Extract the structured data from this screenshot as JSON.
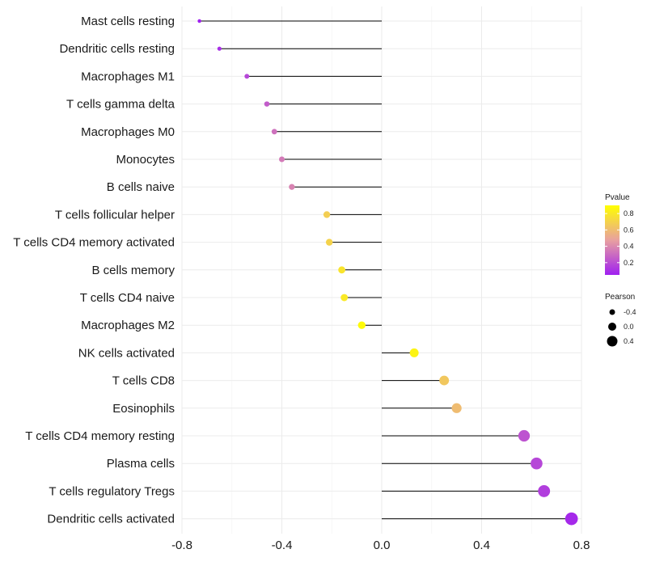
{
  "chart_data": {
    "type": "lollipop",
    "title": "",
    "xlabel": "",
    "ylabel": "",
    "xlim": [
      -0.8,
      0.8
    ],
    "xticks": [
      -0.8,
      -0.4,
      0.0,
      0.4,
      0.8
    ],
    "xtick_labels": [
      "-0.8",
      "-0.4",
      "0.0",
      "0.4",
      "0.8"
    ],
    "grid": true,
    "points": [
      {
        "category": "Mast cells resting",
        "pearson": -0.73,
        "pvalue": 0.05
      },
      {
        "category": "Dendritic cells resting",
        "pearson": -0.65,
        "pvalue": 0.1
      },
      {
        "category": "Macrophages M1",
        "pearson": -0.54,
        "pvalue": 0.18
      },
      {
        "category": "T cells gamma delta",
        "pearson": -0.46,
        "pvalue": 0.25
      },
      {
        "category": "Macrophages M0",
        "pearson": -0.43,
        "pvalue": 0.32
      },
      {
        "category": "Monocytes",
        "pearson": -0.4,
        "pvalue": 0.35
      },
      {
        "category": "B cells naive",
        "pearson": -0.36,
        "pvalue": 0.38
      },
      {
        "category": "T cells follicular helper",
        "pearson": -0.22,
        "pvalue": 0.68
      },
      {
        "category": "T cells CD4 memory activated",
        "pearson": -0.21,
        "pvalue": 0.7
      },
      {
        "category": "B cells memory",
        "pearson": -0.16,
        "pvalue": 0.78
      },
      {
        "category": "T cells CD4 naive",
        "pearson": -0.15,
        "pvalue": 0.8
      },
      {
        "category": "Macrophages M2",
        "pearson": -0.08,
        "pvalue": 0.88
      },
      {
        "category": "NK cells activated",
        "pearson": 0.13,
        "pvalue": 0.85
      },
      {
        "category": "T cells CD8",
        "pearson": 0.25,
        "pvalue": 0.65
      },
      {
        "category": "Eosinophils",
        "pearson": 0.3,
        "pvalue": 0.6
      },
      {
        "category": "T cells CD4 memory resting",
        "pearson": 0.57,
        "pvalue": 0.22
      },
      {
        "category": "Plasma cells",
        "pearson": 0.62,
        "pvalue": 0.18
      },
      {
        "category": "T cells regulatory  Tregs",
        "pearson": 0.65,
        "pvalue": 0.15
      },
      {
        "category": "Dendritic cells activated",
        "pearson": 0.76,
        "pvalue": 0.08
      }
    ],
    "color_legend": {
      "title": "Pvalue",
      "range": [
        0.05,
        0.9
      ],
      "ticks": [
        0.2,
        0.4,
        0.6,
        0.8
      ],
      "tick_labels": [
        "0.2",
        "0.4",
        "0.6",
        "0.8"
      ],
      "low_color": "#a020f0",
      "mid_color": "#e8a0a0",
      "high_color": "#ffff00",
      "placement": "right"
    },
    "size_legend": {
      "title": "Pearson",
      "values": [
        -0.4,
        0.0,
        0.4
      ],
      "labels": [
        "-0.4",
        "0.0",
        "0.4"
      ],
      "placement": "right"
    }
  }
}
